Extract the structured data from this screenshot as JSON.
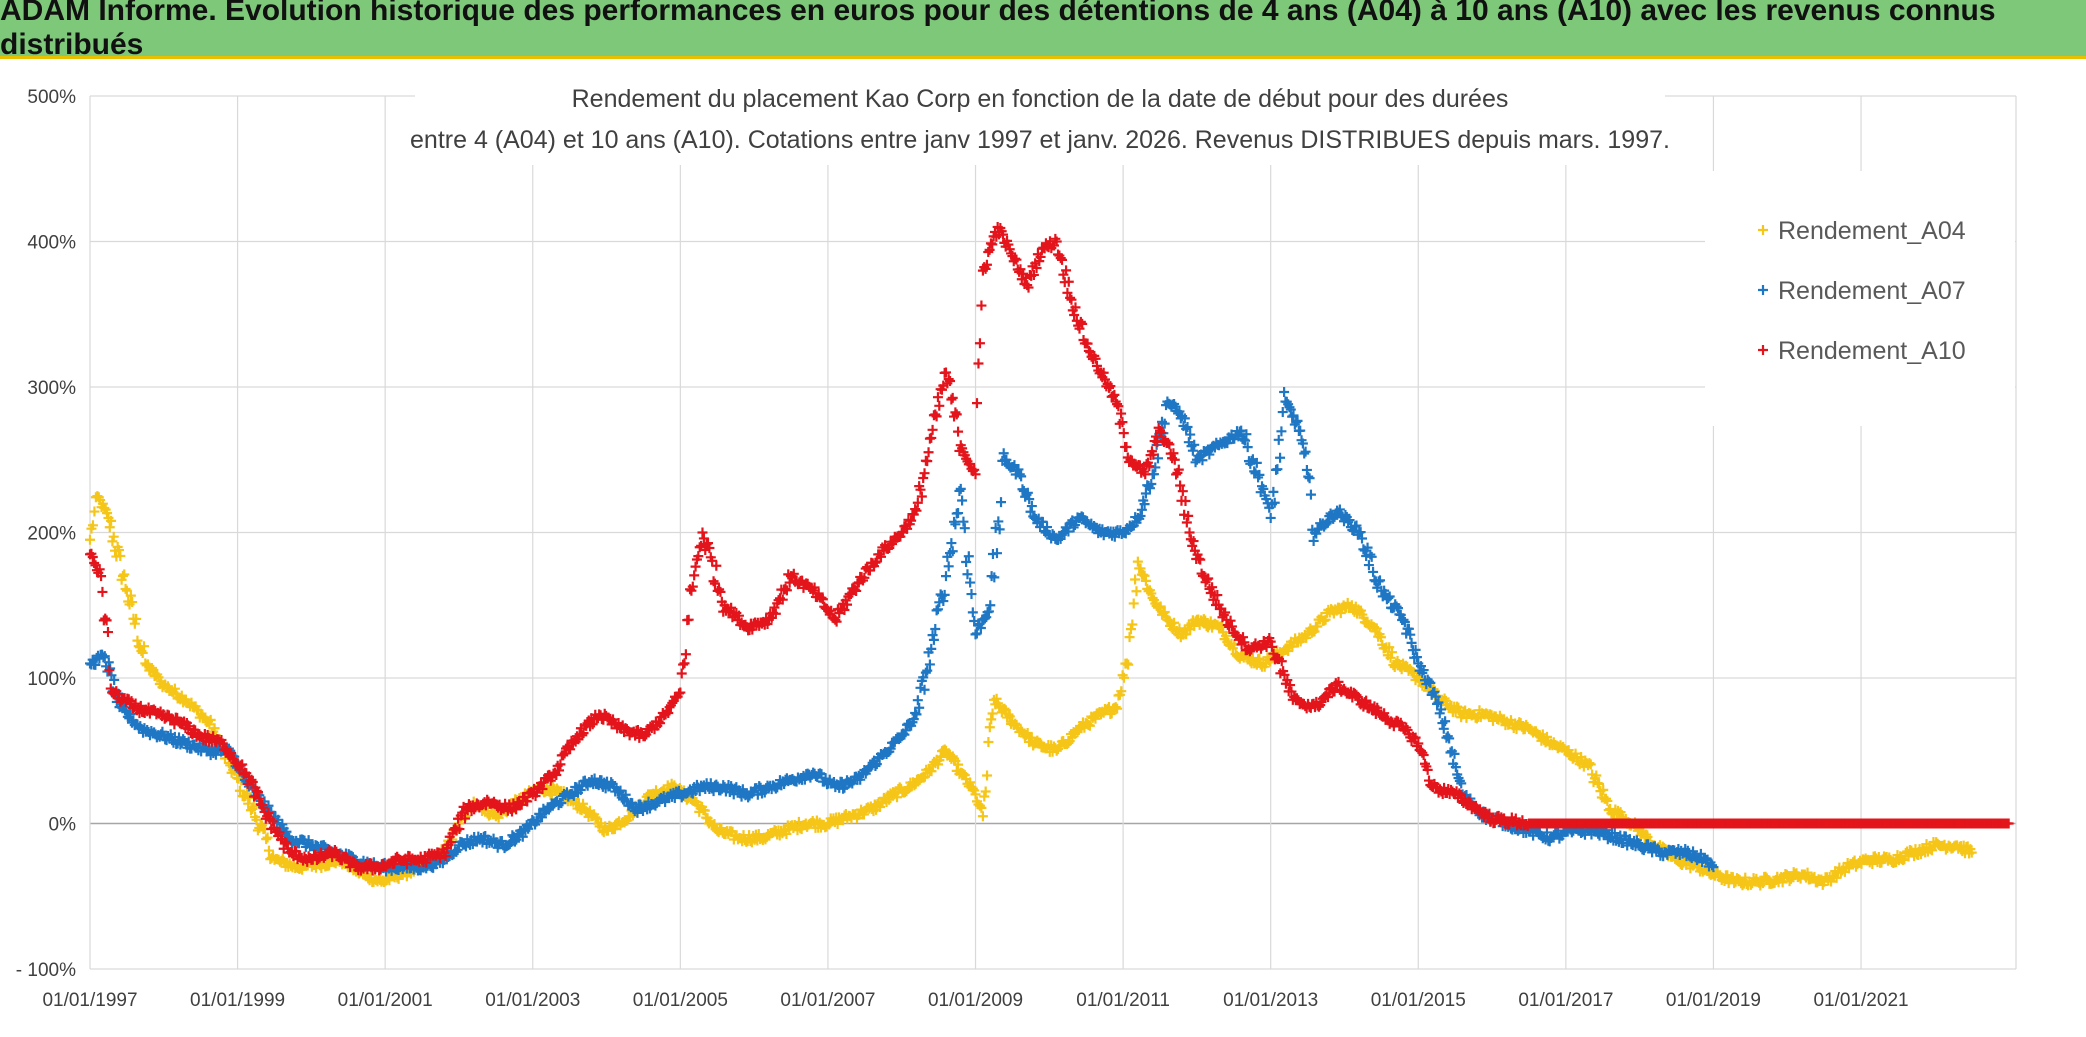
{
  "banner_title": "ADAM Informe. Evolution historique des performances en euros pour des détentions de 4 ans (A04) à 10 ans (A10) avec les revenus connus distribués",
  "colors": {
    "banner": "#7ec87a",
    "A04": "#f5c518",
    "A07": "#1f77c4",
    "A10": "#e3141b",
    "grid": "#d9d9d9"
  },
  "chart_data": {
    "type": "scatter",
    "title_line1": "Rendement du placement Kao Corp en fonction de la date de début pour des durées",
    "title_line2": "entre 4 (A04) et 10 ans (A10). Cotations entre janv 1997 et janv. 2026. Revenus DISTRIBUES depuis mars. 1997.",
    "xlabel": "",
    "ylabel": "",
    "xlim": [
      1997.0,
      2023.1
    ],
    "ylim": [
      -100,
      500
    ],
    "x_ticks": [
      1997,
      1999,
      2001,
      2003,
      2005,
      2007,
      2009,
      2011,
      2013,
      2015,
      2017,
      2019,
      2021
    ],
    "x_tick_labels": [
      "01/01/1997",
      "01/01/1999",
      "01/01/2001",
      "01/01/2003",
      "01/01/2005",
      "01/01/2007",
      "01/01/2009",
      "01/01/2011",
      "01/01/2013",
      "01/01/2015",
      "01/01/2017",
      "01/01/2019",
      "01/01/2021"
    ],
    "y_ticks": [
      -100,
      0,
      100,
      200,
      300,
      400,
      500
    ],
    "y_tick_labels": [
      "- 100%",
      "0%",
      "100%",
      "200%",
      "300%",
      "400%",
      "500%"
    ],
    "grid": true,
    "legend_position": "top-right",
    "marker": "+",
    "series": [
      {
        "name": "Rendement_A04",
        "color": "#f5c518",
        "x": [
          1997.0,
          1997.1,
          1997.25,
          1997.5,
          1997.75,
          1998.0,
          1998.3,
          1998.6,
          1998.9,
          1999.2,
          1999.5,
          1999.8,
          2000.1,
          2000.4,
          2000.7,
          2000.95,
          2001.2,
          2001.5,
          2001.8,
          2002.0,
          2002.2,
          2002.5,
          2002.8,
          2003.1,
          2003.4,
          2003.7,
          2004.0,
          2004.3,
          2004.6,
          2004.9,
          2005.2,
          2005.5,
          2005.8,
          2006.1,
          2006.4,
          2006.7,
          2007.0,
          2007.3,
          2007.6,
          2007.9,
          2008.1,
          2008.35,
          2008.6,
          2008.8,
          2009.0,
          2009.1,
          2009.25,
          2009.5,
          2009.8,
          2010.1,
          2010.4,
          2010.7,
          2010.9,
          2011.05,
          2011.2,
          2011.4,
          2011.6,
          2011.8,
          2012.0,
          2012.3,
          2012.6,
          2012.9,
          2013.2,
          2013.5,
          2013.8,
          2014.1,
          2014.4,
          2014.7,
          2015.0,
          2015.3,
          2015.6,
          2015.9,
          2016.2,
          2016.5,
          2016.8,
          2017.0,
          2017.3,
          2017.6,
          2017.9,
          2018.2,
          2018.5,
          2018.8,
          2019.0,
          2019.3,
          2019.6,
          2019.9,
          2020.2,
          2020.5,
          2020.8,
          2021.1,
          2021.4,
          2021.7,
          2022.0,
          2022.3,
          2022.5
        ],
        "y": [
          195,
          225,
          210,
          160,
          110,
          95,
          85,
          70,
          40,
          10,
          -25,
          -30,
          -28,
          -25,
          -35,
          -40,
          -35,
          -30,
          -20,
          0,
          15,
          5,
          15,
          25,
          20,
          10,
          -5,
          5,
          20,
          25,
          15,
          -5,
          -10,
          -10,
          -5,
          0,
          0,
          5,
          10,
          20,
          25,
          35,
          50,
          35,
          20,
          5,
          85,
          70,
          55,
          50,
          65,
          75,
          80,
          110,
          180,
          155,
          140,
          130,
          140,
          135,
          115,
          110,
          120,
          130,
          145,
          150,
          135,
          110,
          100,
          85,
          75,
          75,
          70,
          65,
          55,
          50,
          40,
          10,
          0,
          -15,
          -25,
          -30,
          -35,
          -40,
          -40,
          -38,
          -35,
          -40,
          -30,
          -25,
          -25,
          -20,
          -15,
          -15,
          -20
        ]
      },
      {
        "name": "Rendement_A07",
        "color": "#1f77c4",
        "x": [
          1997.0,
          1997.2,
          1997.4,
          1997.7,
          1998.0,
          1998.3,
          1998.6,
          1998.9,
          1999.1,
          1999.4,
          1999.7,
          2000.0,
          2000.3,
          2000.6,
          2000.9,
          2001.2,
          2001.5,
          2001.8,
          2002.0,
          2002.3,
          2002.6,
          2002.9,
          2003.2,
          2003.5,
          2003.8,
          2004.1,
          2004.4,
          2004.7,
          2005.0,
          2005.3,
          2005.6,
          2005.9,
          2006.2,
          2006.5,
          2006.8,
          2007.1,
          2007.4,
          2007.7,
          2008.0,
          2008.2,
          2008.4,
          2008.6,
          2008.8,
          2009.0,
          2009.2,
          2009.4,
          2009.6,
          2009.8,
          2010.1,
          2010.4,
          2010.7,
          2011.0,
          2011.2,
          2011.4,
          2011.6,
          2011.8,
          2012.0,
          2012.3,
          2012.6,
          2012.9,
          2013.0,
          2013.2,
          2013.4,
          2013.6,
          2013.9,
          2014.2,
          2014.5,
          2014.8,
          2015.0,
          2015.2,
          2015.4,
          2015.6,
          2015.9,
          2016.2,
          2016.5,
          2016.8,
          2017.1,
          2017.4,
          2017.7,
          2018.0,
          2018.3,
          2018.6,
          2018.9,
          2019.0
        ],
        "y": [
          110,
          115,
          80,
          65,
          60,
          55,
          50,
          50,
          30,
          10,
          -10,
          -15,
          -20,
          -25,
          -30,
          -30,
          -30,
          -25,
          -15,
          -10,
          -15,
          -5,
          10,
          20,
          30,
          25,
          10,
          15,
          20,
          25,
          25,
          20,
          25,
          30,
          35,
          25,
          30,
          45,
          60,
          75,
          120,
          170,
          230,
          130,
          150,
          250,
          240,
          210,
          195,
          210,
          200,
          200,
          210,
          240,
          290,
          280,
          250,
          260,
          270,
          230,
          210,
          290,
          270,
          200,
          215,
          200,
          160,
          140,
          110,
          90,
          60,
          20,
          5,
          0,
          -5,
          -10,
          -5,
          -5,
          -10,
          -15,
          -20,
          -20,
          -25,
          -30
        ]
      },
      {
        "name": "Rendement_A10",
        "color": "#e3141b",
        "x": [
          1997.0,
          1997.15,
          1997.3,
          1997.6,
          1997.9,
          1998.2,
          1998.5,
          1998.8,
          1999.1,
          1999.4,
          1999.7,
          2000.0,
          2000.3,
          2000.6,
          2000.9,
          2001.2,
          2001.5,
          2001.8,
          2002.1,
          2002.4,
          2002.7,
          2003.0,
          2003.3,
          2003.6,
          2003.9,
          2004.2,
          2004.5,
          2004.8,
          2005.0,
          2005.15,
          2005.3,
          2005.6,
          2005.9,
          2006.2,
          2006.5,
          2006.8,
          2007.1,
          2007.4,
          2007.7,
          2008.0,
          2008.2,
          2008.4,
          2008.6,
          2008.8,
          2009.0,
          2009.1,
          2009.3,
          2009.5,
          2009.7,
          2009.9,
          2010.1,
          2010.3,
          2010.5,
          2010.7,
          2010.9,
          2011.1,
          2011.3,
          2011.5,
          2011.7,
          2011.9,
          2012.1,
          2012.4,
          2012.7,
          2013.0,
          2013.3,
          2013.6,
          2013.9,
          2014.2,
          2014.5,
          2014.8,
          2015.0,
          2015.2,
          2015.5,
          2015.8,
          2016.0,
          2016.5,
          2017.0,
          2017.5,
          2018.0,
          2018.5,
          2019.0,
          2019.5,
          2020.0,
          2020.5,
          2021.0,
          2021.5,
          2022.0,
          2022.5,
          2023.0
        ],
        "y": [
          185,
          170,
          90,
          80,
          75,
          70,
          60,
          55,
          35,
          5,
          -20,
          -25,
          -20,
          -30,
          -30,
          -25,
          -25,
          -20,
          10,
          15,
          10,
          20,
          35,
          60,
          75,
          65,
          60,
          75,
          90,
          160,
          200,
          150,
          135,
          140,
          170,
          160,
          140,
          165,
          185,
          200,
          215,
          265,
          310,
          260,
          240,
          380,
          410,
          390,
          370,
          395,
          400,
          360,
          330,
          310,
          290,
          250,
          240,
          270,
          250,
          200,
          170,
          140,
          120,
          125,
          85,
          80,
          95,
          85,
          75,
          65,
          55,
          25,
          20,
          10,
          3,
          0,
          0,
          0,
          0,
          0,
          0,
          0,
          0,
          0,
          0,
          0,
          0,
          0,
          0
        ]
      }
    ]
  }
}
